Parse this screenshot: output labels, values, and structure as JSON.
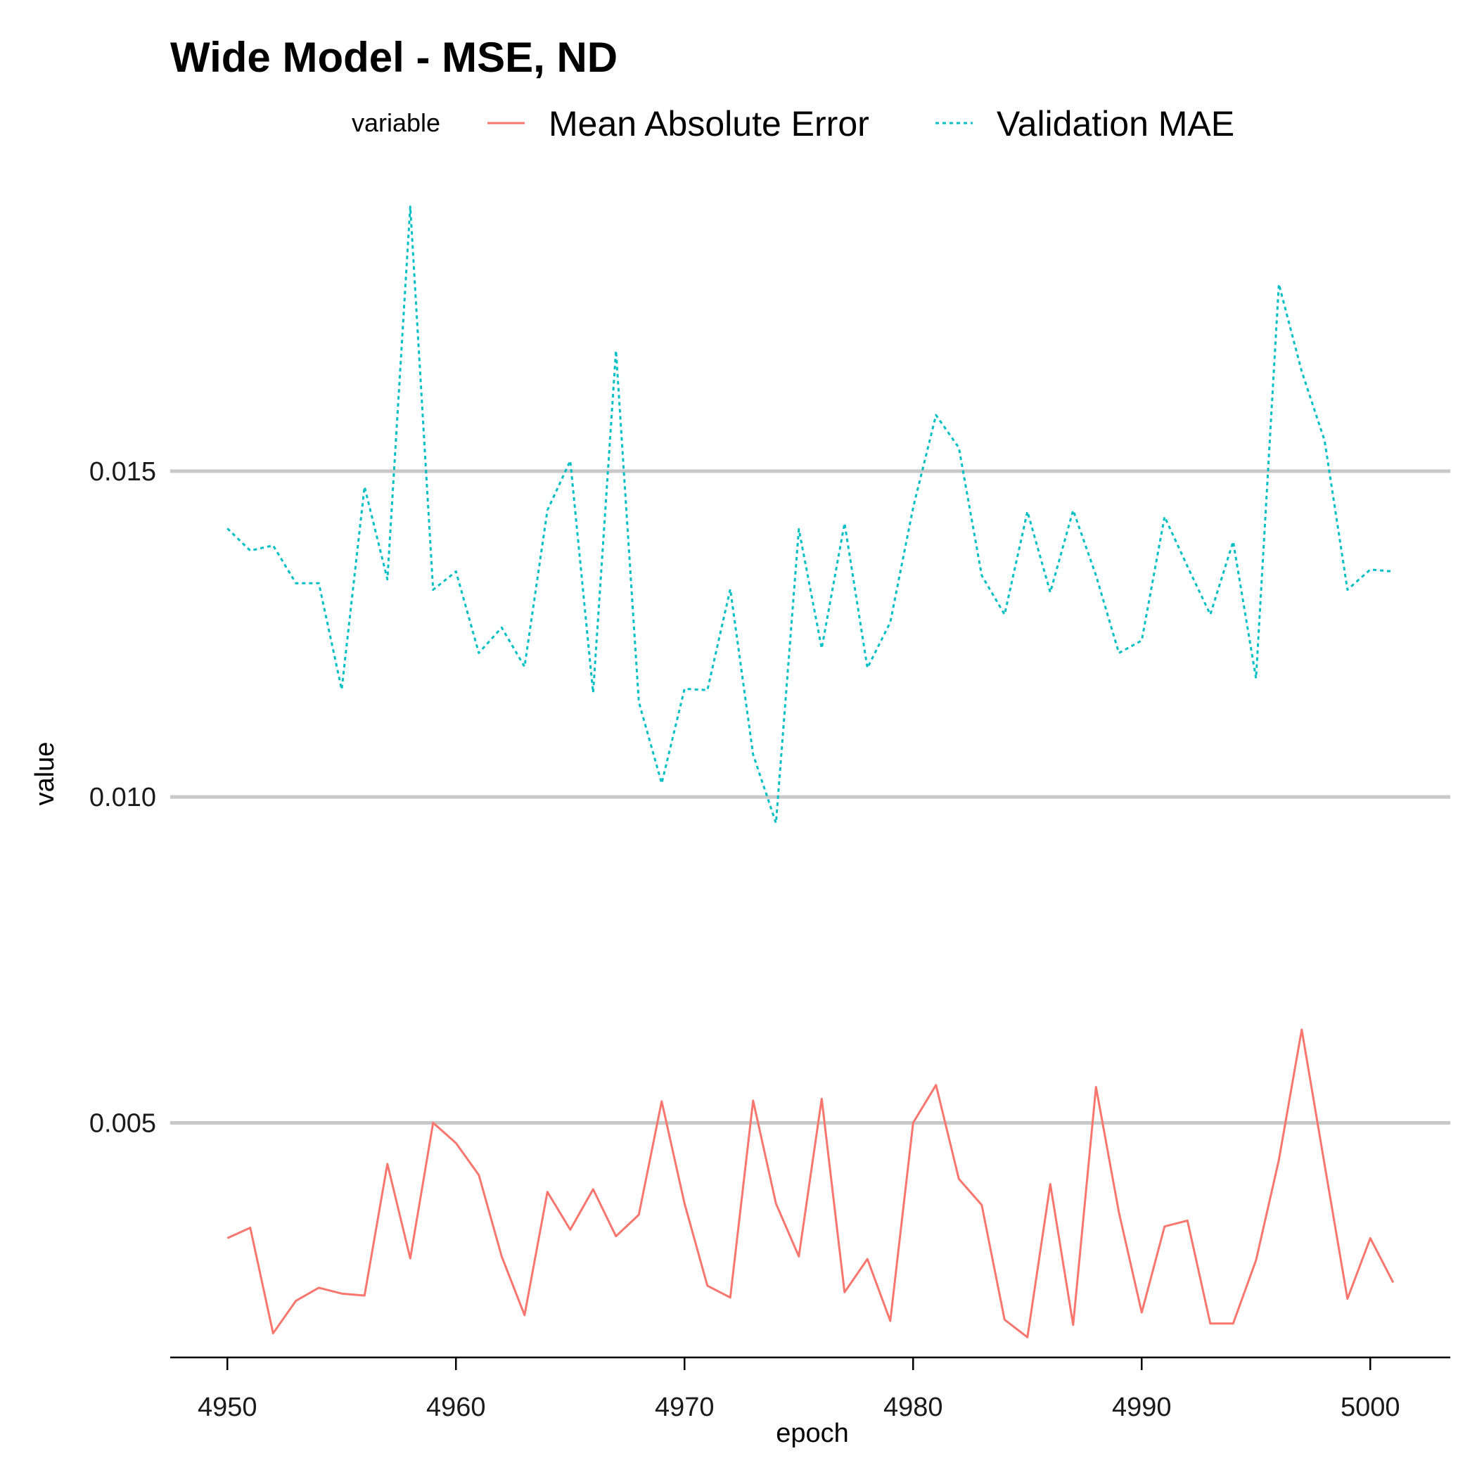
{
  "chart_data": {
    "type": "line",
    "title": "Wide Model - MSE, ND",
    "xlabel": "epoch",
    "ylabel": "value",
    "xlim": [
      4947.5,
      5003.5
    ],
    "ylim": [
      0.0014,
      0.0191
    ],
    "xticks": [
      4950,
      4960,
      4970,
      4980,
      4990,
      5000
    ],
    "yticks": [
      0.005,
      0.01,
      0.015
    ],
    "ytick_labels": [
      "0.005",
      "0.010",
      "0.015"
    ],
    "xtick_labels": [
      "4950",
      "4960",
      "4970",
      "4980",
      "4990",
      "5000"
    ],
    "grid": "horizontal major lines only",
    "legend": {
      "title": "variable",
      "position": "top"
    },
    "x": [
      4950,
      4951,
      4952,
      4953,
      4954,
      4955,
      4956,
      4957,
      4958,
      4959,
      4960,
      4961,
      4962,
      4963,
      4964,
      4965,
      4966,
      4967,
      4968,
      4969,
      4970,
      4971,
      4972,
      4973,
      4974,
      4975,
      4976,
      4977,
      4978,
      4979,
      4980,
      4981,
      4982,
      4983,
      4984,
      4985,
      4986,
      4987,
      4988,
      4989,
      4990,
      4991,
      4992,
      4993,
      4994,
      4995,
      4996,
      4997,
      4998,
      4999,
      5000,
      5001
    ],
    "series": [
      {
        "name": "Mean Absolute Error",
        "color": "#F8766D",
        "linestyle": "solid",
        "values": [
          0.00323,
          0.00339,
          0.00177,
          0.00227,
          0.00247,
          0.00238,
          0.00235,
          0.00437,
          0.00292,
          0.005,
          0.00469,
          0.0042,
          0.00295,
          0.00205,
          0.00394,
          0.00336,
          0.00398,
          0.00326,
          0.00359,
          0.00533,
          0.00376,
          0.0025,
          0.00232,
          0.00534,
          0.00376,
          0.00295,
          0.00537,
          0.0024,
          0.00291,
          0.00196,
          0.005,
          0.00558,
          0.00414,
          0.00374,
          0.00198,
          0.00171,
          0.00406,
          0.0019,
          0.00555,
          0.00363,
          0.00209,
          0.00341,
          0.0035,
          0.00192,
          0.00192,
          0.00289,
          0.00443,
          0.00643,
          0.00436,
          0.0023,
          0.00323,
          0.00255
        ]
      },
      {
        "name": "Validation MAE",
        "color": "#00BFC4",
        "linestyle": "dotted",
        "values": [
          0.01412,
          0.01378,
          0.01386,
          0.01328,
          0.01328,
          0.01165,
          0.01476,
          0.01334,
          0.01906,
          0.01318,
          0.01346,
          0.01221,
          0.0126,
          0.012,
          0.0144,
          0.01516,
          0.0116,
          0.01685,
          0.01146,
          0.01021,
          0.01166,
          0.01164,
          0.01319,
          0.01065,
          0.0096,
          0.01411,
          0.01228,
          0.0142,
          0.01198,
          0.01268,
          0.01444,
          0.01586,
          0.01536,
          0.0134,
          0.0128,
          0.01438,
          0.01314,
          0.0144,
          0.0134,
          0.01221,
          0.0124,
          0.0143,
          0.01354,
          0.0128,
          0.01392,
          0.01182,
          0.01787,
          0.01653,
          0.01547,
          0.01318,
          0.01349,
          0.01346
        ]
      }
    ]
  }
}
